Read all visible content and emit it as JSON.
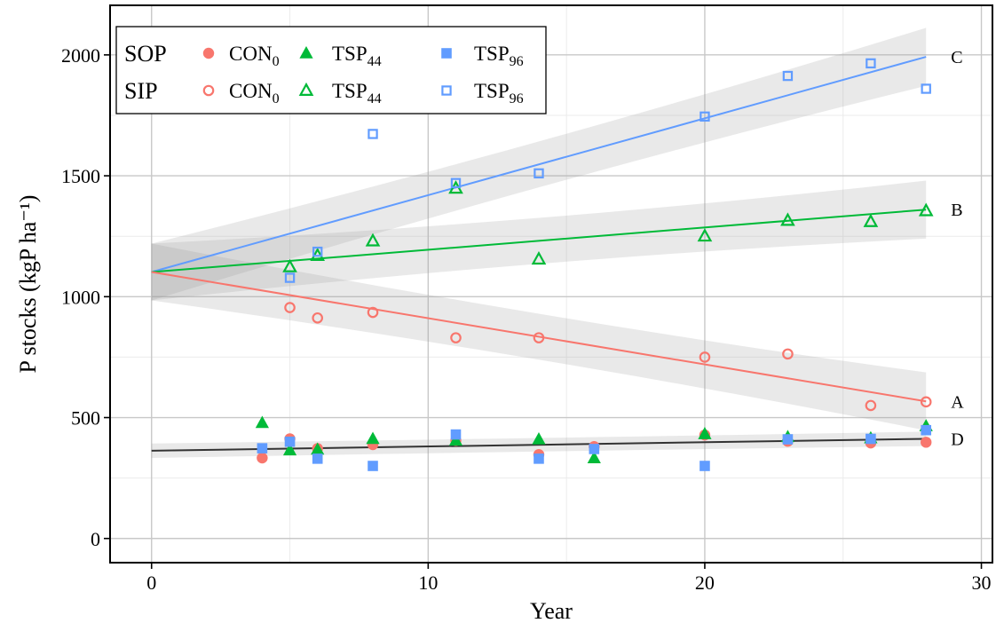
{
  "chart_data": {
    "type": "scatter",
    "xlabel": "Year",
    "ylabel": "P stocks (kgP ha⁻¹)",
    "xlim": [
      -1.5,
      30.4
    ],
    "ylim": [
      -100,
      2205
    ],
    "x_ticks": [
      "0",
      "10",
      "20",
      "30"
    ],
    "y_ticks": [
      "0",
      "500",
      "1000",
      "1500",
      "2000"
    ],
    "grid": true,
    "legend": {
      "position": "top-left",
      "rows": [
        {
          "group": "SOP",
          "filled": true,
          "entries": [
            {
              "label": "CON",
              "sub": "0"
            },
            {
              "label": "TSP",
              "sub": "44"
            },
            {
              "label": "TSP",
              "sub": "96"
            }
          ]
        },
        {
          "group": "SIP",
          "filled": false,
          "entries": [
            {
              "label": "CON",
              "sub": "0"
            },
            {
              "label": "TSP",
              "sub": "44"
            },
            {
              "label": "TSP",
              "sub": "96"
            }
          ]
        }
      ]
    },
    "colors": {
      "CON0": "#f8766d",
      "TSP44": "#00ba38",
      "TSP96": "#619cff",
      "SOP_fit": "#333333"
    },
    "series": [
      {
        "group": "SOP",
        "treatment": "CON0",
        "marker": "circle",
        "filled": true,
        "color": "#f8766d",
        "x": [
          4,
          5,
          6,
          8,
          11,
          14,
          16,
          20,
          23,
          26,
          28
        ],
        "y": [
          333,
          412,
          372,
          388,
          405,
          347,
          380,
          428,
          402,
          395,
          398
        ]
      },
      {
        "group": "SOP",
        "treatment": "TSP44",
        "marker": "triangle",
        "filled": true,
        "color": "#00ba38",
        "x": [
          4,
          5,
          6,
          8,
          11,
          14,
          16,
          20,
          23,
          26,
          28
        ],
        "y": [
          478,
          365,
          368,
          412,
          405,
          410,
          332,
          432,
          420,
          415,
          465
        ]
      },
      {
        "group": "SOP",
        "treatment": "TSP96",
        "marker": "square",
        "filled": true,
        "color": "#619cff",
        "x": [
          4,
          5,
          6,
          8,
          11,
          14,
          16,
          20,
          23,
          26,
          28
        ],
        "y": [
          373,
          400,
          330,
          300,
          430,
          330,
          370,
          300,
          410,
          412,
          448
        ]
      },
      {
        "group": "SIP",
        "treatment": "CON0",
        "marker": "circle",
        "filled": false,
        "color": "#f8766d",
        "x": [
          5,
          6,
          8,
          11,
          14,
          20,
          23,
          26,
          28
        ],
        "y": [
          955,
          912,
          935,
          830,
          830,
          750,
          763,
          550,
          565
        ]
      },
      {
        "group": "SIP",
        "treatment": "TSP44",
        "marker": "triangle",
        "filled": false,
        "color": "#00ba38",
        "x": [
          5,
          6,
          8,
          11,
          14,
          20,
          23,
          26,
          28
        ],
        "y": [
          1123,
          1170,
          1230,
          1448,
          1155,
          1250,
          1315,
          1310,
          1355
        ]
      },
      {
        "group": "SIP",
        "treatment": "TSP96",
        "marker": "square",
        "filled": false,
        "color": "#619cff",
        "x": [
          5,
          6,
          8,
          11,
          14,
          20,
          23,
          26,
          28
        ],
        "y": [
          1078,
          1186,
          1673,
          1470,
          1510,
          1745,
          1913,
          1965,
          1860
        ]
      }
    ],
    "fits": [
      {
        "id": "C",
        "label": "C",
        "color": "#619cff",
        "x": [
          0,
          28
        ],
        "y": [
          1102,
          1992
        ],
        "band_halfwidth": [
          95,
          120
        ]
      },
      {
        "id": "B",
        "label": "B",
        "color": "#00ba38",
        "x": [
          0,
          28
        ],
        "y": [
          1102,
          1360
        ],
        "band_halfwidth": [
          95,
          120
        ]
      },
      {
        "id": "A",
        "label": "A",
        "color": "#f8766d",
        "x": [
          0,
          28
        ],
        "y": [
          1102,
          567
        ],
        "band_halfwidth": [
          95,
          120
        ]
      },
      {
        "id": "D",
        "label": "D",
        "color": "#333333",
        "x": [
          0,
          28
        ],
        "y": [
          363,
          412
        ],
        "band_halfwidth": [
          28,
          30
        ]
      }
    ]
  }
}
